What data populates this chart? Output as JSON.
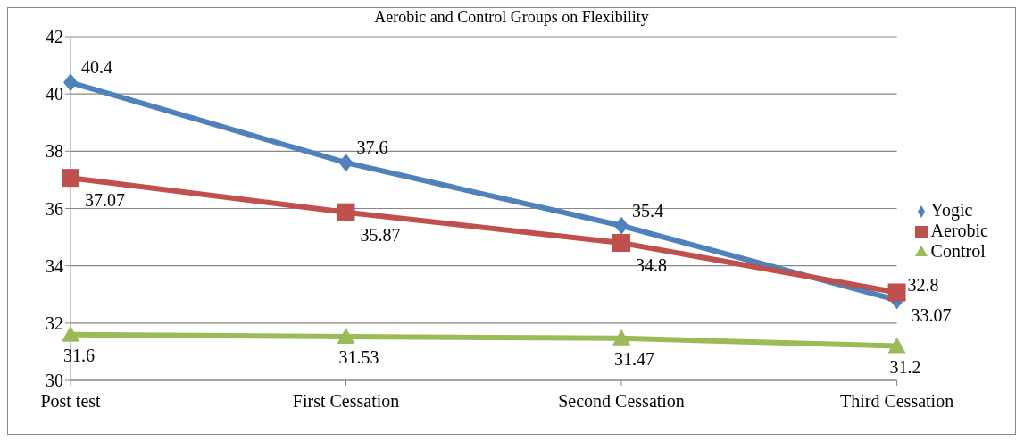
{
  "chart_data": {
    "type": "line",
    "title": "Aerobic and Control Groups on Flexibility",
    "categories": [
      "Post test",
      "First  Cessation",
      "Second  Cessation",
      "Third  Cessation"
    ],
    "series": [
      {
        "name": "Yogic",
        "color": "#4f81bd",
        "marker": "diamond",
        "values": [
          40.4,
          37.6,
          35.4,
          32.8
        ]
      },
      {
        "name": "Aerobic",
        "color": "#c0504d",
        "marker": "square",
        "values": [
          37.07,
          35.87,
          34.8,
          33.07
        ]
      },
      {
        "name": "Control",
        "color": "#9bbb59",
        "marker": "triangle",
        "values": [
          31.6,
          31.53,
          31.47,
          31.2
        ]
      }
    ],
    "ylim": [
      30,
      42
    ],
    "yticks": [
      30,
      32,
      34,
      36,
      38,
      40,
      42
    ],
    "grid": "y",
    "legend": "right",
    "data_labels": true
  }
}
